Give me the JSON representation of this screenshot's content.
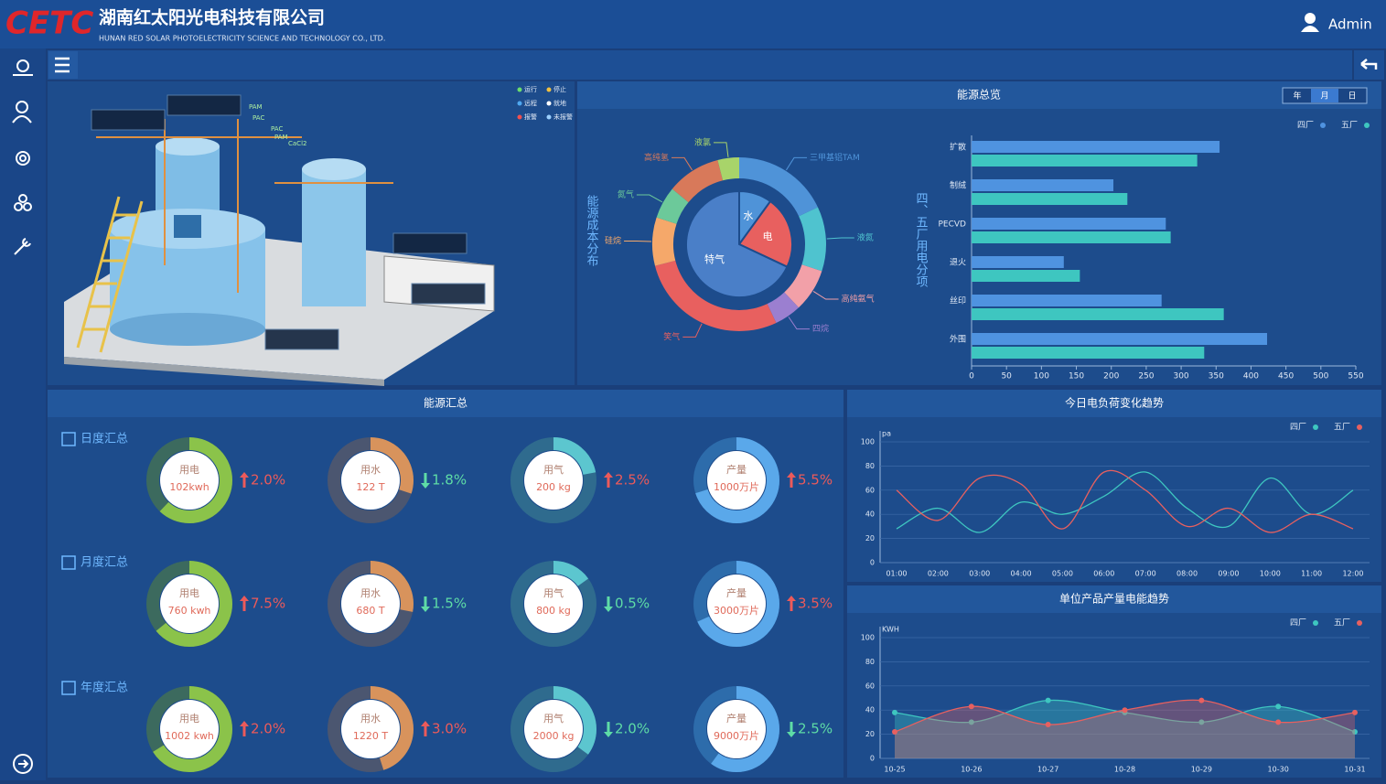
{
  "header": {
    "logo": "CETC",
    "title": "湖南红太阳光电科技有限公司",
    "subtitle": "HUNAN RED SOLAR PHOTOELECTRICITY SCIENCE AND TECHNOLOGY CO., LTD.",
    "user": "Admin"
  },
  "process_view": {
    "legend": [
      "运行",
      "停止",
      "远程",
      "就地",
      "报警",
      "未报警"
    ],
    "labels": [
      "PAM",
      "PAC",
      "PAC",
      "PAM",
      "CaCl2"
    ]
  },
  "chart_data": [
    {
      "type": "pie",
      "title": "能源总览",
      "tabs": [
        "年",
        "月",
        "日"
      ],
      "active_tab": 1,
      "label": "能源成本分布",
      "categories": [
        "三甲基铝TAM",
        "液氮",
        "高纯氨气",
        "四烷",
        "笑气",
        "硅烷",
        "氮气",
        "高纯氢",
        "液氯"
      ],
      "values": [
        18,
        12,
        8,
        5,
        28,
        9,
        6,
        10,
        4
      ],
      "colors": [
        "#4f93d8",
        "#4fc3cf",
        "#f2a0a8",
        "#9b7fd0",
        "#e8605f",
        "#f5a86a",
        "#6cc99a",
        "#d8795a",
        "#a8d46a"
      ],
      "inner": {
        "categories": [
          "水",
          "电",
          "特气"
        ],
        "values": [
          10,
          22,
          68
        ],
        "colors": [
          "#4f93d8",
          "#e8605f",
          "#4a7fc8"
        ]
      }
    },
    {
      "type": "hbar",
      "label": "四、五厂用电分项",
      "categories": [
        "扩散",
        "制绒",
        "PECVD",
        "退火",
        "丝印",
        "外围"
      ],
      "series": [
        {
          "name": "四厂",
          "color": "#4f93e0",
          "values": [
            355,
            203,
            278,
            132,
            272,
            423
          ]
        },
        {
          "name": "五厂",
          "color": "#3ec6c0",
          "values": [
            323,
            223,
            285,
            155,
            361,
            333
          ]
        }
      ],
      "xlim": [
        0,
        550
      ],
      "xticks": [
        0,
        50,
        100,
        150,
        200,
        250,
        300,
        350,
        400,
        450,
        500,
        550
      ]
    },
    {
      "type": "line",
      "title": "今日电负荷变化趋势",
      "y_label": "pa",
      "categories": [
        "01:00",
        "02:00",
        "03:00",
        "04:00",
        "05:00",
        "06:00",
        "07:00",
        "08:00",
        "09:00",
        "10:00",
        "11:00",
        "12:00"
      ],
      "series": [
        {
          "name": "四厂",
          "color": "#3ec6c0",
          "values": [
            28,
            45,
            25,
            50,
            40,
            55,
            75,
            45,
            30,
            70,
            40,
            60
          ]
        },
        {
          "name": "五厂",
          "color": "#e8605f",
          "values": [
            60,
            35,
            70,
            65,
            28,
            75,
            60,
            30,
            45,
            25,
            40,
            28
          ]
        }
      ],
      "ylim": [
        0,
        100
      ],
      "yticks": [
        0,
        20,
        40,
        60,
        80,
        100
      ],
      "grid": true
    },
    {
      "type": "area",
      "title": "单位产品产量电能趋势",
      "y_label": "KWH",
      "categories": [
        "10-25",
        "10-26",
        "10-27",
        "10-28",
        "10-29",
        "10-30",
        "10-31"
      ],
      "series": [
        {
          "name": "四厂",
          "color": "#3ec6c0",
          "values": [
            38,
            30,
            48,
            38,
            30,
            43,
            22
          ]
        },
        {
          "name": "五厂",
          "color": "#e8605f",
          "values": [
            22,
            43,
            28,
            40,
            48,
            30,
            38
          ]
        }
      ],
      "ylim": [
        0,
        100
      ],
      "yticks": [
        0,
        20,
        40,
        60,
        80,
        100
      ],
      "grid": true
    }
  ],
  "summary": {
    "title": "能源汇总",
    "rows": [
      {
        "label": "日度汇总",
        "items": [
          {
            "name": "用电",
            "amount": "102kwh",
            "change": "2.0%",
            "direction": "up",
            "ring": 62
          },
          {
            "name": "用水",
            "amount": "122 T",
            "change": "1.8%",
            "direction": "down",
            "ring": 30
          },
          {
            "name": "用气",
            "amount": "200 kg",
            "change": "2.5%",
            "direction": "up",
            "ring": 22
          },
          {
            "name": "产量",
            "amount": "1000万片",
            "change": "5.5%",
            "direction": "up",
            "ring": 70
          }
        ]
      },
      {
        "label": "月度汇总",
        "items": [
          {
            "name": "用电",
            "amount": "760 kwh",
            "change": "7.5%",
            "direction": "up",
            "ring": 64
          },
          {
            "name": "用水",
            "amount": "680 T",
            "change": "1.5%",
            "direction": "down",
            "ring": 28
          },
          {
            "name": "用气",
            "amount": "800 kg",
            "change": "0.5%",
            "direction": "down",
            "ring": 15
          },
          {
            "name": "产量",
            "amount": "3000万片",
            "change": "3.5%",
            "direction": "up",
            "ring": 68
          }
        ]
      },
      {
        "label": "年度汇总",
        "items": [
          {
            "name": "用电",
            "amount": "1002 kwh",
            "change": "2.0%",
            "direction": "up",
            "ring": 66
          },
          {
            "name": "用水",
            "amount": "1220 T",
            "change": "3.0%",
            "direction": "up",
            "ring": 45
          },
          {
            "name": "用气",
            "amount": "2000 kg",
            "change": "2.0%",
            "direction": "down",
            "ring": 35
          },
          {
            "name": "产量",
            "amount": "9000万片",
            "change": "2.5%",
            "direction": "down",
            "ring": 60
          }
        ]
      }
    ]
  }
}
